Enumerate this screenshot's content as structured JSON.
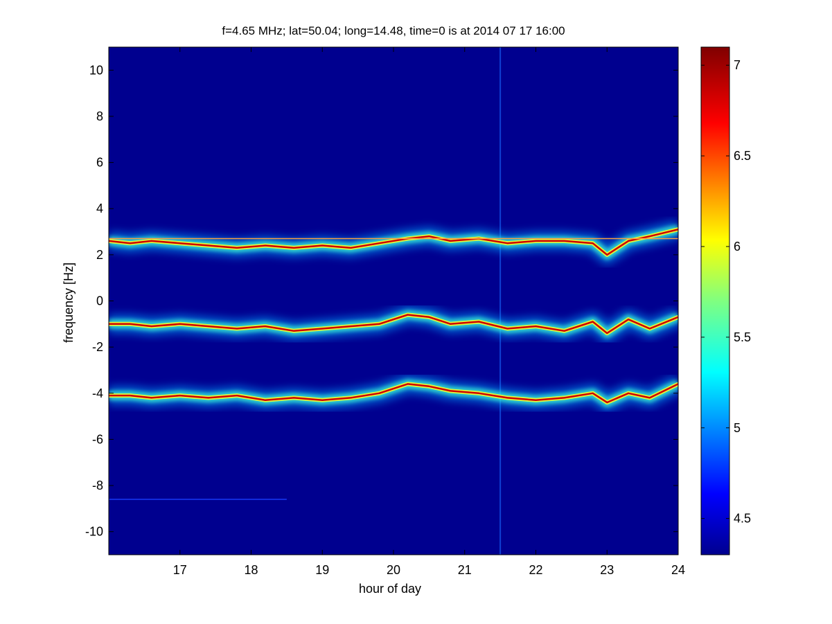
{
  "chart_data": {
    "type": "heatmap",
    "title": "f=4.65 MHz;  lat=50.04; long=14.48, time=0 is at 2014 07 17 16:00",
    "xlabel": "hour of day",
    "ylabel": "frequency [Hz]",
    "xlim": [
      16,
      24
    ],
    "ylim": [
      -11,
      11
    ],
    "xticks": [
      "17",
      "18",
      "19",
      "20",
      "21",
      "22",
      "23",
      "24"
    ],
    "yticks": [
      "10",
      "8",
      "6",
      "4",
      "2",
      "0",
      "-2",
      "-4",
      "-6",
      "-8",
      "-10"
    ],
    "colorbar": {
      "range": [
        4.3,
        7.1
      ],
      "ticks": [
        "7",
        "6.5",
        "6",
        "5.5",
        "5",
        "4.5"
      ],
      "colormap": "jet"
    },
    "background_color": "#00008F",
    "traces": [
      {
        "x": [
          16.0,
          16.3,
          16.6,
          17.0,
          17.4,
          17.8,
          18.2,
          18.6,
          19.0,
          19.4,
          19.8,
          20.2,
          20.5,
          20.8,
          21.2,
          21.6,
          22.0,
          22.4,
          22.8,
          23.0,
          23.3,
          23.6,
          24.0
        ],
        "y": [
          2.6,
          2.5,
          2.6,
          2.5,
          2.4,
          2.3,
          2.4,
          2.3,
          2.4,
          2.3,
          2.5,
          2.7,
          2.8,
          2.6,
          2.7,
          2.5,
          2.6,
          2.6,
          2.5,
          2.0,
          2.6,
          2.8,
          3.1
        ]
      },
      {
        "x": [
          16.0,
          16.3,
          16.6,
          17.0,
          17.4,
          17.8,
          18.2,
          18.6,
          19.0,
          19.4,
          19.8,
          20.2,
          20.5,
          20.8,
          21.2,
          21.6,
          22.0,
          22.4,
          22.8,
          23.0,
          23.3,
          23.6,
          24.0
        ],
        "y": [
          -1.0,
          -1.0,
          -1.1,
          -1.0,
          -1.1,
          -1.2,
          -1.1,
          -1.3,
          -1.2,
          -1.1,
          -1.0,
          -0.6,
          -0.7,
          -1.0,
          -0.9,
          -1.2,
          -1.1,
          -1.3,
          -0.9,
          -1.4,
          -0.8,
          -1.2,
          -0.7
        ]
      },
      {
        "x": [
          16.0,
          16.3,
          16.6,
          17.0,
          17.4,
          17.8,
          18.2,
          18.6,
          19.0,
          19.4,
          19.8,
          20.2,
          20.5,
          20.8,
          21.2,
          21.6,
          22.0,
          22.4,
          22.8,
          23.0,
          23.3,
          23.6,
          24.0
        ],
        "y": [
          -4.1,
          -4.1,
          -4.2,
          -4.1,
          -4.2,
          -4.1,
          -4.3,
          -4.2,
          -4.3,
          -4.2,
          -4.0,
          -3.6,
          -3.7,
          -3.9,
          -4.0,
          -4.2,
          -4.3,
          -4.2,
          -4.0,
          -4.4,
          -4.0,
          -4.2,
          -3.6
        ]
      }
    ],
    "reference_line": {
      "y": 2.7,
      "color": "#FFA040"
    },
    "vertical_streak": {
      "x": 21.5
    },
    "faint_line": {
      "y": -8.6,
      "x": [
        16.0,
        18.5
      ]
    }
  }
}
